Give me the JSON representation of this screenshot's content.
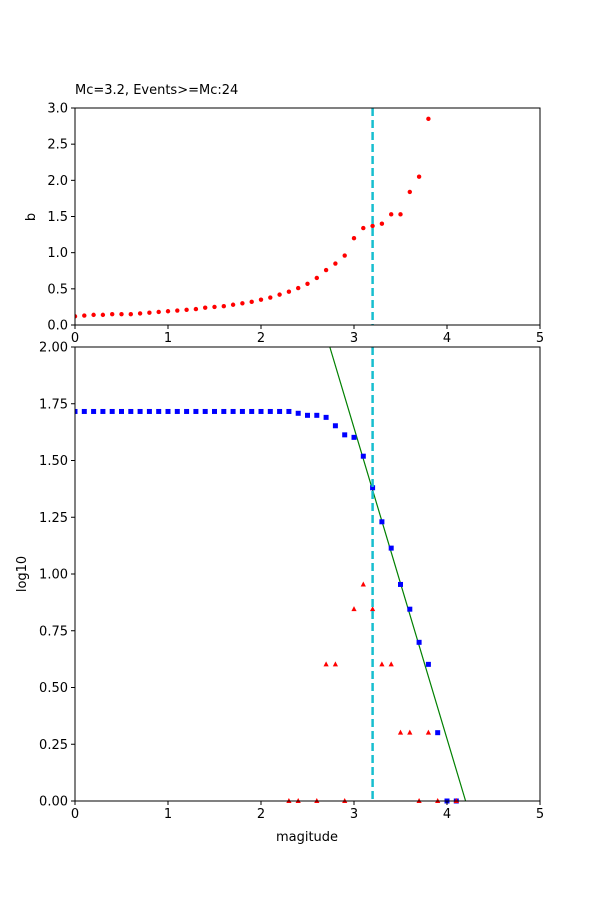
{
  "chart_data": [
    {
      "type": "scatter",
      "title": "Mc=3.2, Events>=Mc:24",
      "ylabel": "b",
      "xlim": [
        0,
        5
      ],
      "ylim": [
        0,
        3.0
      ],
      "x_ticks": [
        "0",
        "1",
        "2",
        "3",
        "4",
        "5"
      ],
      "y_ticks": [
        "0.0",
        "0.5",
        "1.0",
        "1.5",
        "2.0",
        "2.5",
        "3.0"
      ],
      "mc_line": {
        "x": 3.2,
        "color": "#17becf",
        "style": "dashed"
      },
      "series": [
        {
          "color": "#ff0000",
          "marker": "circle",
          "x": [
            0.0,
            0.1,
            0.2,
            0.3,
            0.4,
            0.5,
            0.6,
            0.7,
            0.8,
            0.9,
            1.0,
            1.1,
            1.2,
            1.3,
            1.4,
            1.5,
            1.6,
            1.7,
            1.8,
            1.9,
            2.0,
            2.1,
            2.2,
            2.3,
            2.4,
            2.5,
            2.6,
            2.7,
            2.8,
            2.9,
            3.0,
            3.1,
            3.2,
            3.3,
            3.4,
            3.5,
            3.6,
            3.7,
            3.8
          ],
          "y": [
            0.12,
            0.13,
            0.14,
            0.14,
            0.15,
            0.15,
            0.15,
            0.16,
            0.17,
            0.18,
            0.19,
            0.2,
            0.21,
            0.22,
            0.24,
            0.25,
            0.26,
            0.28,
            0.3,
            0.32,
            0.35,
            0.38,
            0.42,
            0.46,
            0.51,
            0.57,
            0.65,
            0.76,
            0.85,
            0.96,
            1.2,
            1.34,
            1.37,
            1.4,
            1.53,
            1.53,
            1.84,
            2.05,
            2.85
          ]
        }
      ]
    },
    {
      "type": "scatter",
      "xlabel": "magitude",
      "ylabel": "log10",
      "xlim": [
        0,
        5
      ],
      "ylim": [
        0,
        2.0
      ],
      "x_ticks": [
        "0",
        "1",
        "2",
        "3",
        "4",
        "5"
      ],
      "y_ticks": [
        "0.00",
        "0.25",
        "0.50",
        "0.75",
        "1.00",
        "1.25",
        "1.50",
        "1.75",
        "2.00"
      ],
      "mc_line": {
        "x": 3.2,
        "color": "#17becf",
        "style": "dashed"
      },
      "fit_line": {
        "color": "#008000",
        "x": [
          2.74,
          4.2
        ],
        "y": [
          2.0,
          0.0
        ]
      },
      "series": [
        {
          "color": "#0000ff",
          "marker": "square",
          "x": [
            0.0,
            0.1,
            0.2,
            0.3,
            0.4,
            0.5,
            0.6,
            0.7,
            0.8,
            0.9,
            1.0,
            1.1,
            1.2,
            1.3,
            1.4,
            1.5,
            1.6,
            1.7,
            1.8,
            1.9,
            2.0,
            2.1,
            2.2,
            2.3,
            2.4,
            2.5,
            2.6,
            2.7,
            2.8,
            2.9,
            3.0,
            3.1,
            3.2,
            3.3,
            3.4,
            3.5,
            3.6,
            3.7,
            3.8,
            3.9,
            4.0,
            4.1
          ],
          "y": [
            1.716,
            1.716,
            1.716,
            1.716,
            1.716,
            1.716,
            1.716,
            1.716,
            1.716,
            1.716,
            1.716,
            1.716,
            1.716,
            1.716,
            1.716,
            1.716,
            1.716,
            1.716,
            1.716,
            1.716,
            1.716,
            1.716,
            1.716,
            1.716,
            1.708,
            1.699,
            1.699,
            1.69,
            1.653,
            1.613,
            1.602,
            1.519,
            1.38,
            1.23,
            1.114,
            0.954,
            0.845,
            0.699,
            0.602,
            0.301,
            0.0,
            0.0
          ]
        },
        {
          "color": "#ff0000",
          "marker": "triangle",
          "x": [
            2.3,
            2.4,
            2.6,
            2.7,
            2.8,
            2.9,
            3.0,
            3.1,
            3.2,
            3.3,
            3.4,
            3.5,
            3.6,
            3.7,
            3.8,
            3.9,
            4.1
          ],
          "y": [
            0.0,
            0.0,
            0.0,
            0.602,
            0.602,
            0.0,
            0.845,
            0.954,
            0.845,
            0.602,
            0.602,
            0.301,
            0.301,
            0.0,
            0.301,
            0.0,
            0.0
          ]
        }
      ]
    }
  ]
}
